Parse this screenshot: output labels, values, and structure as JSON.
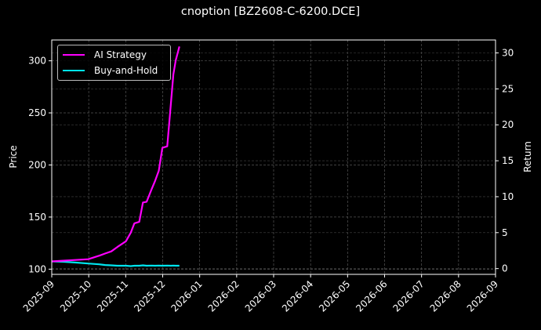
{
  "title": "cnoption [BZ2608-C-6200.DCE]",
  "axes": {
    "left_label": "Price",
    "right_label": "Return",
    "left_ticks": [
      "300",
      "250",
      "200",
      "150",
      "100"
    ],
    "right_ticks": [
      "30",
      "25",
      "20",
      "15",
      "10",
      "5",
      "0"
    ],
    "x_ticks": [
      "2025-09",
      "2025-10",
      "2025-11",
      "2025-12",
      "2026-01",
      "2026-02",
      "2026-03",
      "2026-04",
      "2026-05",
      "2026-06",
      "2026-07",
      "2026-08",
      "2026-09"
    ]
  },
  "legend": {
    "items": [
      {
        "label": "AI Strategy",
        "color": "#ff00ff"
      },
      {
        "label": "Buy-and-Hold",
        "color": "#00e5ee"
      }
    ]
  },
  "chart_data": {
    "type": "line",
    "title": "cnoption [BZ2608-C-6200.DCE]",
    "xlabel": "",
    "ylabel": "Price",
    "y2label": "Return",
    "ylim": [
      95,
      320
    ],
    "y2lim": [
      -0.8,
      31.8
    ],
    "xlim": [
      "2025-09-01",
      "2026-09-01"
    ],
    "x_tick_labels": [
      "2025-09",
      "2025-10",
      "2025-11",
      "2025-12",
      "2026-01",
      "2026-02",
      "2026-03",
      "2026-04",
      "2026-05",
      "2026-06",
      "2026-07",
      "2026-08",
      "2026-09"
    ],
    "left_tick_labels": [
      100,
      150,
      200,
      250,
      300
    ],
    "right_tick_labels": [
      0,
      5,
      10,
      15,
      20,
      25,
      30
    ],
    "grid": true,
    "legend_position": "upper left",
    "x": [
      "2025-09-01",
      "2025-09-10",
      "2025-09-20",
      "2025-10-01",
      "2025-10-10",
      "2025-10-15",
      "2025-10-20",
      "2025-10-25",
      "2025-11-01",
      "2025-11-05",
      "2025-11-08",
      "2025-11-12",
      "2025-11-15",
      "2025-11-18",
      "2025-11-22",
      "2025-11-25",
      "2025-11-28",
      "2025-12-01",
      "2025-12-05",
      "2025-12-08",
      "2025-12-10",
      "2025-12-12",
      "2025-12-15"
    ],
    "series": [
      {
        "name": "AI Strategy",
        "axis": "right",
        "color": "#ff00ff",
        "values": [
          1.0,
          1.1,
          1.2,
          1.3,
          1.8,
          2.1,
          2.4,
          3.0,
          3.8,
          5.0,
          6.3,
          6.5,
          9.2,
          9.3,
          11.0,
          12.2,
          13.6,
          16.8,
          17.0,
          23.0,
          27.0,
          29.0,
          30.9
        ]
      },
      {
        "name": "Buy-and-Hold",
        "axis": "right",
        "color": "#00e5ee",
        "values": [
          1.0,
          0.95,
          0.85,
          0.7,
          0.6,
          0.5,
          0.45,
          0.4,
          0.4,
          0.35,
          0.4,
          0.4,
          0.45,
          0.4,
          0.42,
          0.4,
          0.42,
          0.4,
          0.42,
          0.4,
          0.42,
          0.4,
          0.4
        ]
      }
    ]
  }
}
